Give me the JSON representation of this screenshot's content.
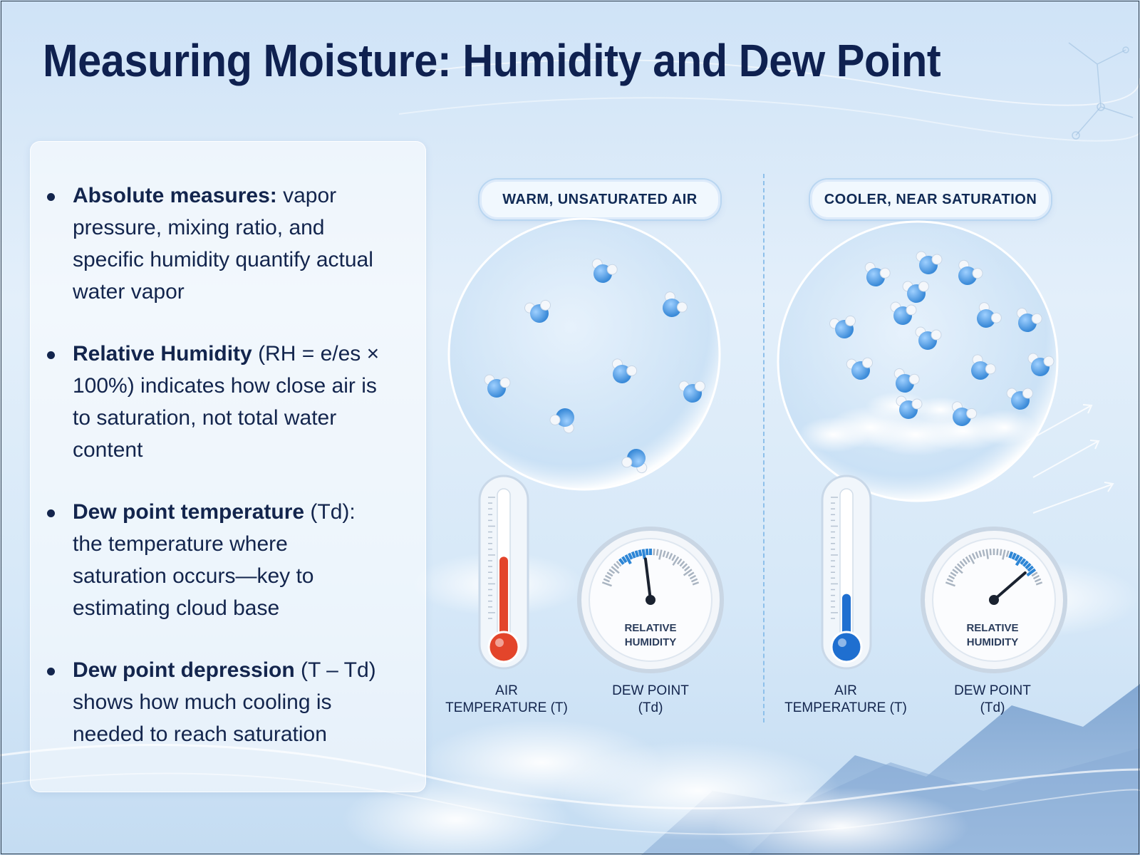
{
  "title": "Measuring Moisture: Humidity and Dew Point",
  "bullets": [
    {
      "term": "Absolute measures:",
      "text": " vapor pressure, mixing ratio, and specific humidity quantify actual water vapor"
    },
    {
      "term": "Relative Humidity",
      "text": " (RH = e/es × 100%) indicates how close air is to saturation, not total water content"
    },
    {
      "term": "Dew point temperature",
      "text": " (Td): the temperature where saturation occurs—key to estimating cloud base"
    },
    {
      "term": "Dew point depression",
      "text": " (T – Td) shows how much cooling is needed to reach saturation"
    }
  ],
  "scenes": {
    "left": {
      "label": "WARM, UNSATURATED AIR",
      "thermometer_label_line1": "AIR",
      "thermometer_label_line2": "TEMPERATURE (T)",
      "gauge_text_line1": "RELATIVE",
      "gauge_text_line2": "HUMIDITY",
      "gauge_label_line1": "DEW POINT",
      "gauge_label_line2": "(Td)",
      "thermometer_fill": 0.62,
      "thermometer_color": "#e3452b",
      "gauge_level": 0.45
    },
    "right": {
      "label": "COOLER, NEAR SATURATION",
      "thermometer_label_line1": "AIR",
      "thermometer_label_line2": "TEMPERATURE (T)",
      "gauge_text_line1": "RELATIVE",
      "gauge_text_line2": "HUMIDITY",
      "gauge_label_line1": "DEW POINT",
      "gauge_label_line2": "(Td)",
      "thermometer_fill": 0.33,
      "thermometer_color": "#1f6fd0",
      "gauge_level": 0.85
    }
  },
  "colors": {
    "title": "#0f2150",
    "molecule_oxygen": "#3a8ad8",
    "molecule_hydrogen": "#f4f7fb",
    "gauge_accent": "#2d86d6"
  }
}
